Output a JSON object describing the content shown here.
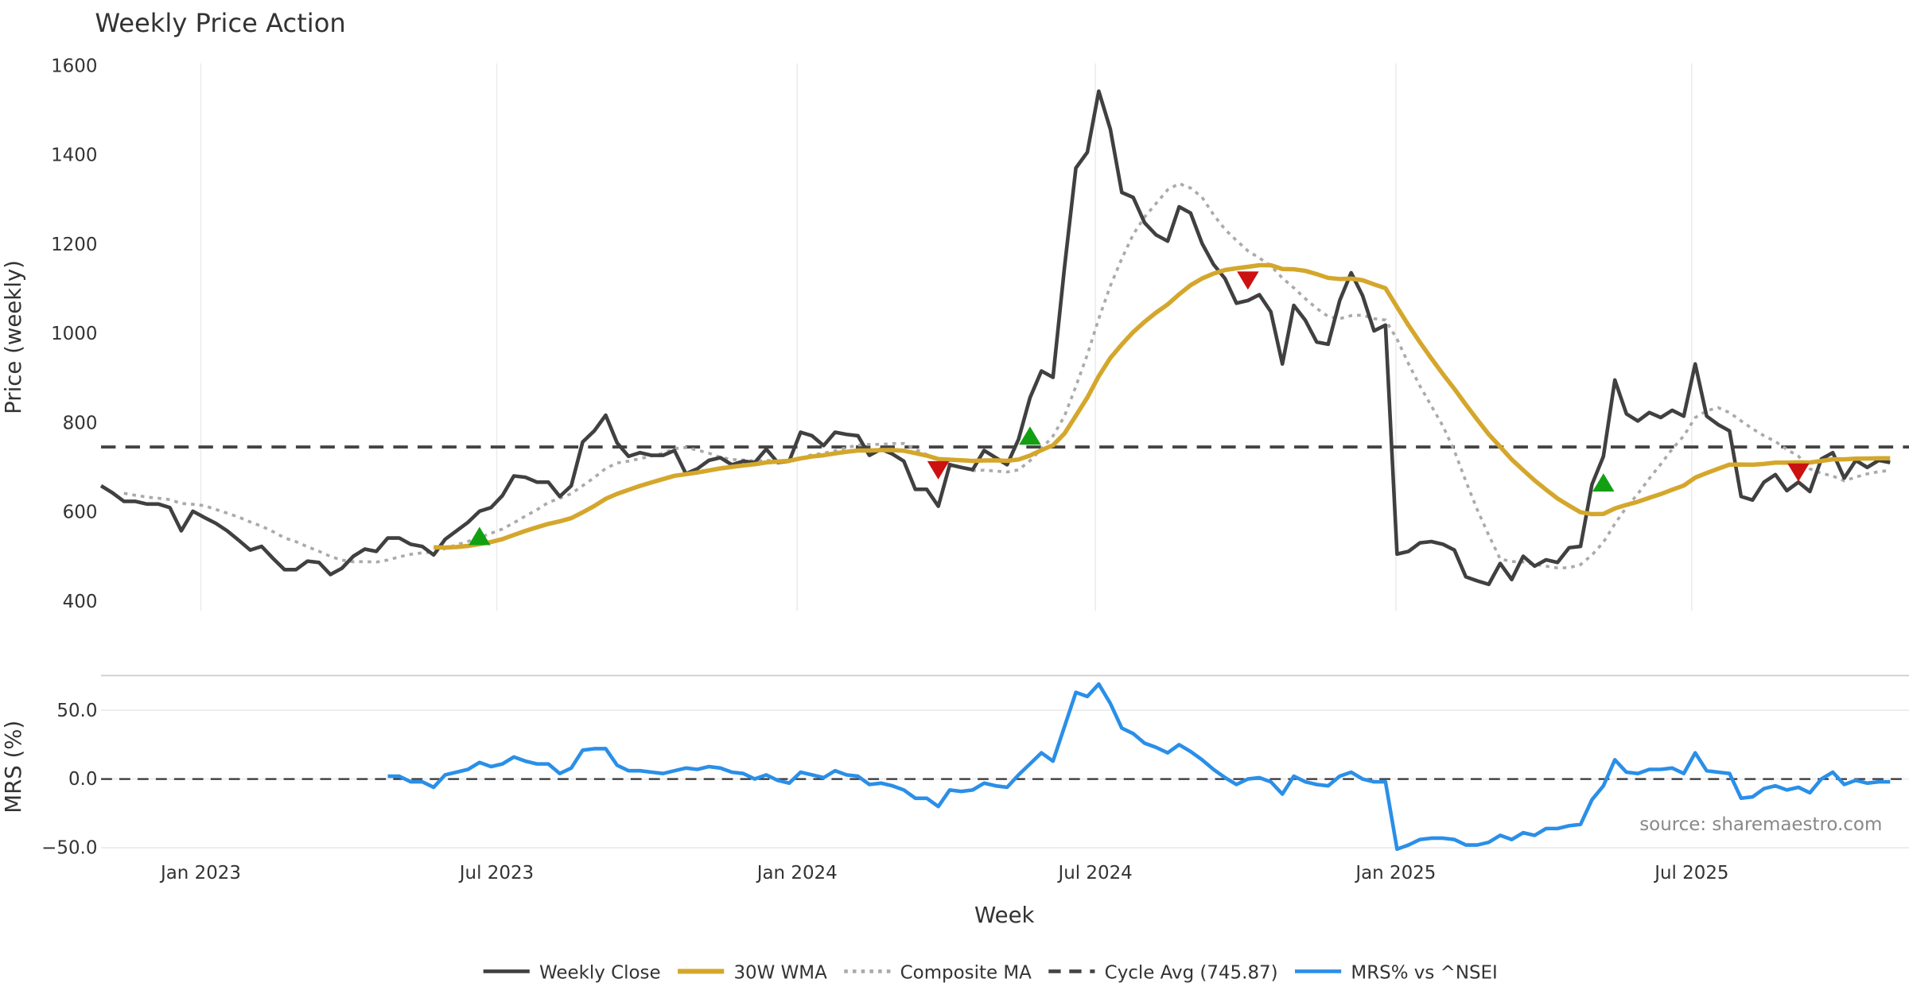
{
  "chart_data": {
    "type": "line",
    "title": "Weekly Price Action",
    "xlabel": "Week",
    "ylabel_top": "Price (weekly)",
    "ylabel_bottom": "MRS (%)",
    "source": "source: sharemaestro.com",
    "x_ticks": [
      {
        "label": "Jan 2023",
        "week_index": 8.7
      },
      {
        "label": "Jul 2023",
        "week_index": 34.5
      },
      {
        "label": "Jan 2024",
        "week_index": 60.7
      },
      {
        "label": "Jul 2024",
        "week_index": 86.7
      },
      {
        "label": "Jan 2025",
        "week_index": 112.9
      },
      {
        "label": "Jul 2025",
        "week_index": 138.7
      }
    ],
    "price_axis": {
      "ylim": [
        400,
        1600
      ],
      "ticks": [
        "400",
        "600",
        "800",
        "1000",
        "1200",
        "1400",
        "1600"
      ]
    },
    "mrs_axis": {
      "ylim": [
        -50,
        50
      ],
      "ticks": [
        {
          "label": "50.0",
          "value": 50
        },
        {
          "label": "0.0",
          "value": 0
        },
        {
          "label": "−50.0",
          "value": -50
        }
      ]
    },
    "cycle_avg": 745.87,
    "wma_period": 30,
    "composite_period": 10,
    "colors": {
      "close": "#404040",
      "wma": "#d4a72c",
      "composite": "#aaaaaa",
      "cycle": "#444444",
      "mrs": "#2a8fe8",
      "buy": "#12a012",
      "sell": "#cc1111"
    },
    "weekly_close": [
      659,
      643,
      624,
      624,
      618,
      618,
      610,
      558,
      602,
      588,
      575,
      558,
      537,
      515,
      523,
      496,
      471,
      471,
      490,
      487,
      460,
      474,
      501,
      517,
      512,
      542,
      542,
      528,
      523,
      504,
      539,
      558,
      577,
      602,
      610,
      637,
      681,
      678,
      667,
      667,
      635,
      659,
      757,
      782,
      817,
      755,
      725,
      733,
      727,
      727,
      738,
      686,
      697,
      716,
      722,
      706,
      714,
      711,
      741,
      711,
      714,
      779,
      771,
      749,
      779,
      774,
      771,
      727,
      741,
      730,
      714,
      651,
      651,
      613,
      706,
      700,
      695,
      738,
      722,
      706,
      763,
      856,
      916,
      902,
      1147,
      1371,
      1406,
      1543,
      1458,
      1316,
      1305,
      1248,
      1221,
      1207,
      1284,
      1270,
      1202,
      1155,
      1123,
      1068,
      1074,
      1087,
      1049,
      932,
      1063,
      1030,
      981,
      976,
      1074,
      1136,
      1085,
      1006,
      1019,
      506,
      512,
      531,
      534,
      528,
      515,
      455,
      446,
      438,
      485,
      449,
      501,
      479,
      493,
      487,
      520,
      523,
      662,
      725,
      896,
      820,
      804,
      823,
      812,
      828,
      815,
      932,
      815,
      796,
      782,
      635,
      627,
      667,
      684,
      648,
      667,
      646,
      719,
      733,
      676,
      716,
      700,
      716,
      711
    ],
    "mrs": [
      null,
      null,
      null,
      null,
      null,
      null,
      null,
      null,
      null,
      null,
      null,
      null,
      null,
      null,
      null,
      null,
      null,
      null,
      null,
      null,
      null,
      null,
      null,
      null,
      null,
      2,
      2,
      -2,
      -2,
      -6,
      3,
      5,
      7,
      12,
      9,
      11,
      16,
      13,
      11,
      11,
      4,
      8,
      21,
      22,
      22,
      10,
      6,
      6,
      5,
      4,
      6,
      8,
      7,
      9,
      8,
      5,
      4,
      0,
      3,
      -1,
      -3,
      5,
      3,
      1,
      6,
      3,
      2,
      -4,
      -3,
      -5,
      -8,
      -14,
      -14,
      -20,
      -8,
      -9,
      -8,
      -3,
      -5,
      -6,
      3,
      11,
      19,
      13,
      38,
      63,
      60,
      69,
      55,
      37,
      33,
      26,
      23,
      19,
      25,
      20,
      14,
      7,
      1,
      -4,
      0,
      1,
      -2,
      -11,
      2,
      -2,
      -4,
      -5,
      2,
      5,
      0,
      -2,
      -2,
      -51,
      -48,
      -44,
      -43,
      -43,
      -44,
      -48,
      -48,
      -46,
      -41,
      -44,
      -39,
      -41,
      -36,
      -36,
      -34,
      -33,
      -15,
      -5,
      14,
      5,
      4,
      7,
      7,
      8,
      4,
      19,
      6,
      5,
      4,
      -14,
      -13,
      -7,
      -5,
      -8,
      -6,
      -10,
      0,
      5,
      -4,
      -1,
      -3,
      -2,
      -2
    ],
    "signals": [
      {
        "type": "buy",
        "week_index": 33,
        "price": 545
      },
      {
        "type": "sell",
        "week_index": 73,
        "price": 695
      },
      {
        "type": "buy",
        "week_index": 81,
        "price": 770
      },
      {
        "type": "sell",
        "week_index": 100,
        "price": 1120
      },
      {
        "type": "buy",
        "week_index": 131,
        "price": 665
      },
      {
        "type": "sell",
        "week_index": 148,
        "price": 690
      }
    ],
    "legend": {
      "placement": "bottom-center",
      "items": [
        {
          "label": "Weekly Close",
          "key": "close",
          "style": "solid"
        },
        {
          "label": "30W WMA",
          "key": "wma",
          "style": "solid"
        },
        {
          "label": "Composite MA",
          "key": "composite",
          "style": "dotted"
        },
        {
          "label": "Cycle Avg (745.87)",
          "key": "cycle",
          "style": "dashed"
        },
        {
          "label": "MRS% vs ^NSEI",
          "key": "mrs",
          "style": "solid"
        }
      ]
    }
  }
}
